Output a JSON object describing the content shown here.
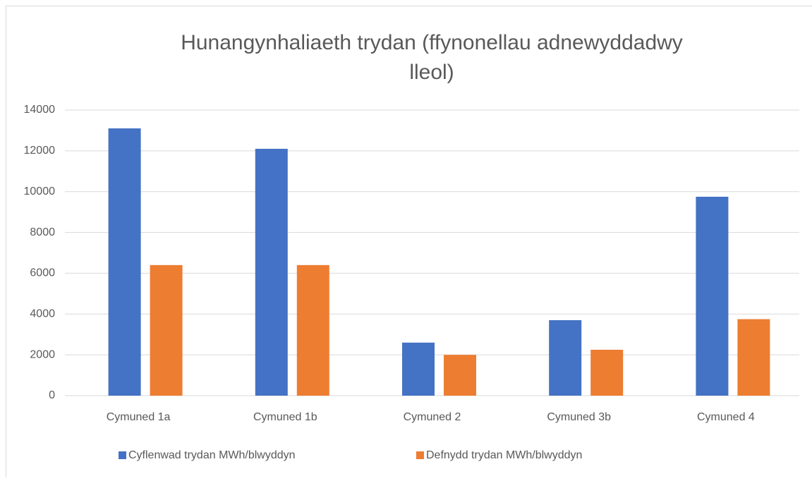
{
  "chart_data": {
    "type": "bar",
    "title": [
      "Hunangynhaliaeth trydan (ffynonellau adnewyddadwy",
      "lleol)"
    ],
    "categories": [
      "Cymuned 1a",
      "Cymuned 1b",
      "Cymuned 2",
      "Cymuned 3b",
      "Cymuned 4"
    ],
    "series": [
      {
        "name": "Cyflenwad trydan MWh/blwyddyn",
        "color": "#4472c4",
        "values": [
          13100,
          12100,
          2600,
          3700,
          9750
        ]
      },
      {
        "name": "Defnydd trydan MWh/blwyddyn",
        "color": "#ed7d31",
        "values": [
          6400,
          6400,
          2000,
          2250,
          3750
        ]
      }
    ],
    "ylim": [
      0,
      14000
    ],
    "yticks": [
      0,
      2000,
      4000,
      6000,
      8000,
      10000,
      12000,
      14000
    ],
    "grid": true,
    "legend": "bottom"
  }
}
